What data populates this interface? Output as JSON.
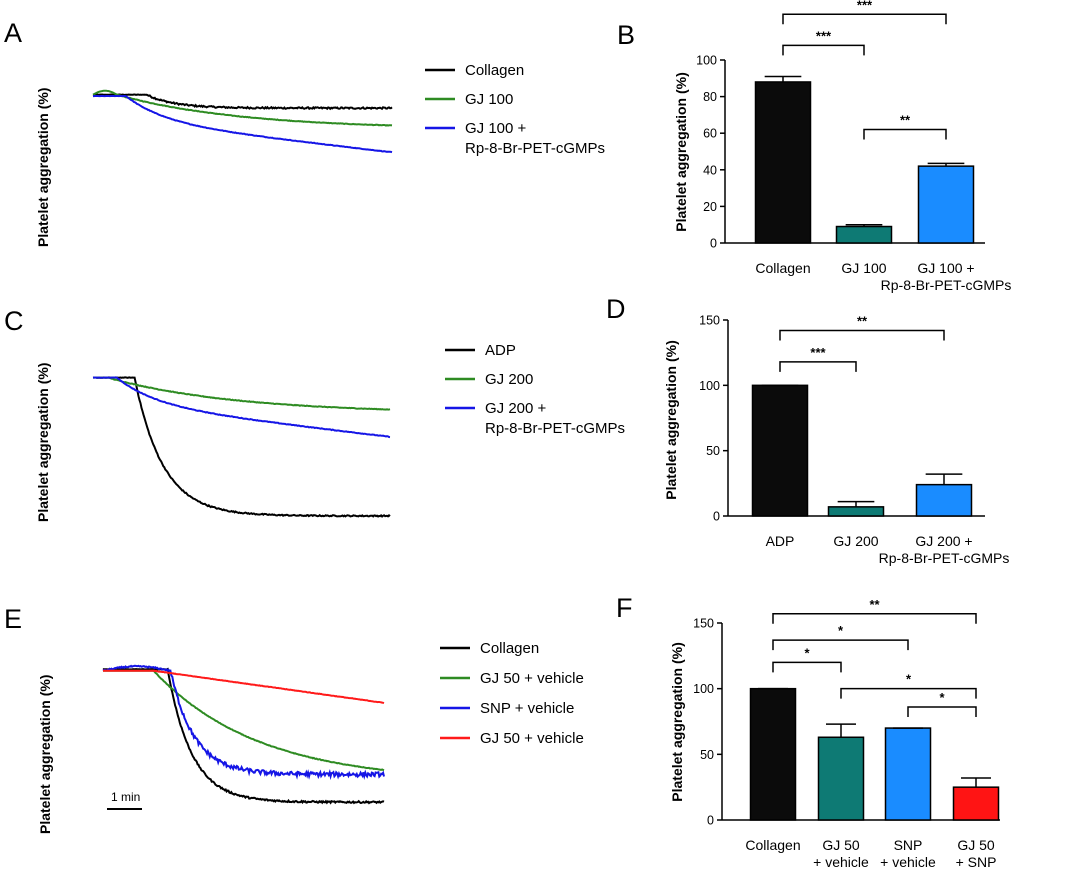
{
  "chart_data": [
    {
      "panel": "A",
      "type": "line",
      "ylabel": "Platelet aggregation (%)",
      "legend": [
        "Collagen",
        "GJ 100",
        "GJ 100 +",
        "Rp-8-Br-PET-cGMPs"
      ],
      "series": [
        {
          "name": "Collagen",
          "color": "#000000",
          "start": 0.95,
          "plateau_end": 0.17,
          "onset": 0.18,
          "end": 0.85,
          "noise": 0.012,
          "shape": "sigmoid",
          "bump": 0.0
        },
        {
          "name": "GJ 100",
          "color": "#2e8b22",
          "start": 0.95,
          "plateau_end": 0.2,
          "onset": 0.08,
          "end": 0.72,
          "noise": 0.004,
          "shape": "slow",
          "bump": 0.03
        },
        {
          "name": "GJ 100 + Rp-8-Br-PET-cGMPs",
          "color": "#1515e6",
          "start": 0.94,
          "plateau_end": 0.17,
          "onset": 0.11,
          "end": 0.52,
          "noise": 0.004,
          "shape": "fast-slow",
          "bump": 0.0
        }
      ]
    },
    {
      "panel": "B",
      "type": "bar",
      "ylabel": "Platelet aggregation (%)",
      "ylim": [
        0,
        100
      ],
      "yticks": [
        0,
        20,
        40,
        60,
        80,
        100
      ],
      "categories": [
        [
          "Collagen"
        ],
        [
          "GJ 100"
        ],
        [
          "GJ 100 +",
          "Rp-8-Br-PET-cGMPs"
        ]
      ],
      "values": [
        88,
        9,
        42
      ],
      "errors": [
        3,
        1,
        1.5
      ],
      "colors": [
        "#0b0b0b",
        "#0e7a74",
        "#1a8cff"
      ],
      "significance": [
        {
          "from": 0,
          "to": 1,
          "label": "***",
          "y": 108
        },
        {
          "from": 0,
          "to": 2,
          "label": "***",
          "y": 125
        },
        {
          "from": 1,
          "to": 2,
          "label": "**",
          "y": 62
        }
      ]
    },
    {
      "panel": "C",
      "type": "line",
      "ylabel": "Platelet aggregation (%)",
      "legend": [
        "ADP",
        "GJ 200",
        "GJ 200 +",
        "Rp-8-Br-PET-cGMPs"
      ],
      "series": [
        {
          "name": "ADP",
          "color": "#000000",
          "start": 0.95,
          "plateau_end": 0.14,
          "onset": 0.14,
          "end": 0.04,
          "noise": 0.008,
          "shape": "sigmoid",
          "bump": 0.0
        },
        {
          "name": "GJ 200",
          "color": "#2e8b22",
          "start": 0.95,
          "plateau_end": 0.18,
          "onset": 0.05,
          "end": 0.74,
          "noise": 0.004,
          "shape": "slow",
          "bump": 0.0
        },
        {
          "name": "GJ 200 + Rp-8-Br-PET-cGMPs",
          "color": "#1515e6",
          "start": 0.95,
          "plateau_end": 0.12,
          "onset": 0.08,
          "end": 0.56,
          "noise": 0.004,
          "shape": "fast-slow",
          "bump": 0.0
        }
      ]
    },
    {
      "panel": "D",
      "type": "bar",
      "ylabel": "Platelet aggregation (%)",
      "ylim": [
        0,
        150
      ],
      "yticks": [
        0,
        50,
        100,
        150
      ],
      "categories": [
        [
          "ADP"
        ],
        [
          "GJ 200"
        ],
        [
          "GJ 200 +",
          "Rp-8-Br-PET-cGMPs"
        ]
      ],
      "values": [
        100,
        7,
        24
      ],
      "errors": [
        0,
        4,
        8
      ],
      "colors": [
        "#0b0b0b",
        "#0e7a74",
        "#1a8cff"
      ],
      "significance": [
        {
          "from": 0,
          "to": 1,
          "label": "***",
          "y": 118
        },
        {
          "from": 0,
          "to": 2,
          "label": "**",
          "y": 142
        }
      ]
    },
    {
      "panel": "E",
      "type": "line",
      "ylabel": "Platelet aggregation (%)",
      "legend": [
        "Collagen",
        "GJ 50 + vehicle",
        "SNP + vehicle",
        "GJ 50 + vehicle"
      ],
      "scale_bar": "1 min",
      "series": [
        {
          "name": "Collagen",
          "color": "#000000",
          "start": 0.95,
          "plateau_end": 0.19,
          "onset": 0.23,
          "end": 0.04,
          "noise": 0.012,
          "shape": "sigmoid",
          "bump": 0.0
        },
        {
          "name": "GJ 50 + vehicle",
          "color": "#2e8b22",
          "start": 0.94,
          "plateau_end": 0.17,
          "onset": 0.18,
          "end": 0.26,
          "noise": 0.004,
          "shape": "slow",
          "bump": 0.0
        },
        {
          "name": "SNP + vehicle",
          "color": "#1515e6",
          "start": 0.94,
          "plateau_end": 0.2,
          "onset": 0.24,
          "end": 0.23,
          "noise": 0.03,
          "shape": "sigmoid",
          "bump": 0.03
        },
        {
          "name": "GJ 50 + vehicle",
          "color": "#ff1a1a",
          "start": 0.94,
          "plateau_end": 0.19,
          "onset": 0.18,
          "end": 0.72,
          "noise": 0.003,
          "shape": "linear",
          "bump": 0.0
        }
      ]
    },
    {
      "panel": "F",
      "type": "bar",
      "ylabel": "Platelet aggregation (%)",
      "ylim": [
        0,
        150
      ],
      "yticks": [
        0,
        50,
        100,
        150
      ],
      "categories": [
        [
          "Collagen"
        ],
        [
          "GJ 50",
          "+ vehicle"
        ],
        [
          "SNP",
          "+ vehicle"
        ],
        [
          "GJ 50",
          "+ SNP"
        ]
      ],
      "values": [
        100,
        63,
        70,
        25
      ],
      "errors": [
        0,
        10,
        0,
        7
      ],
      "colors": [
        "#0b0b0b",
        "#0e7a74",
        "#1a8cff",
        "#ff1414"
      ],
      "significance": [
        {
          "from": 0,
          "to": 1,
          "label": "*",
          "y": 120
        },
        {
          "from": 0,
          "to": 2,
          "label": "*",
          "y": 137
        },
        {
          "from": 0,
          "to": 3,
          "label": "**",
          "y": 157
        },
        {
          "from": 1,
          "to": 3,
          "label": "*",
          "y": 100
        },
        {
          "from": 2,
          "to": 3,
          "label": "*",
          "y": 86
        }
      ]
    }
  ]
}
